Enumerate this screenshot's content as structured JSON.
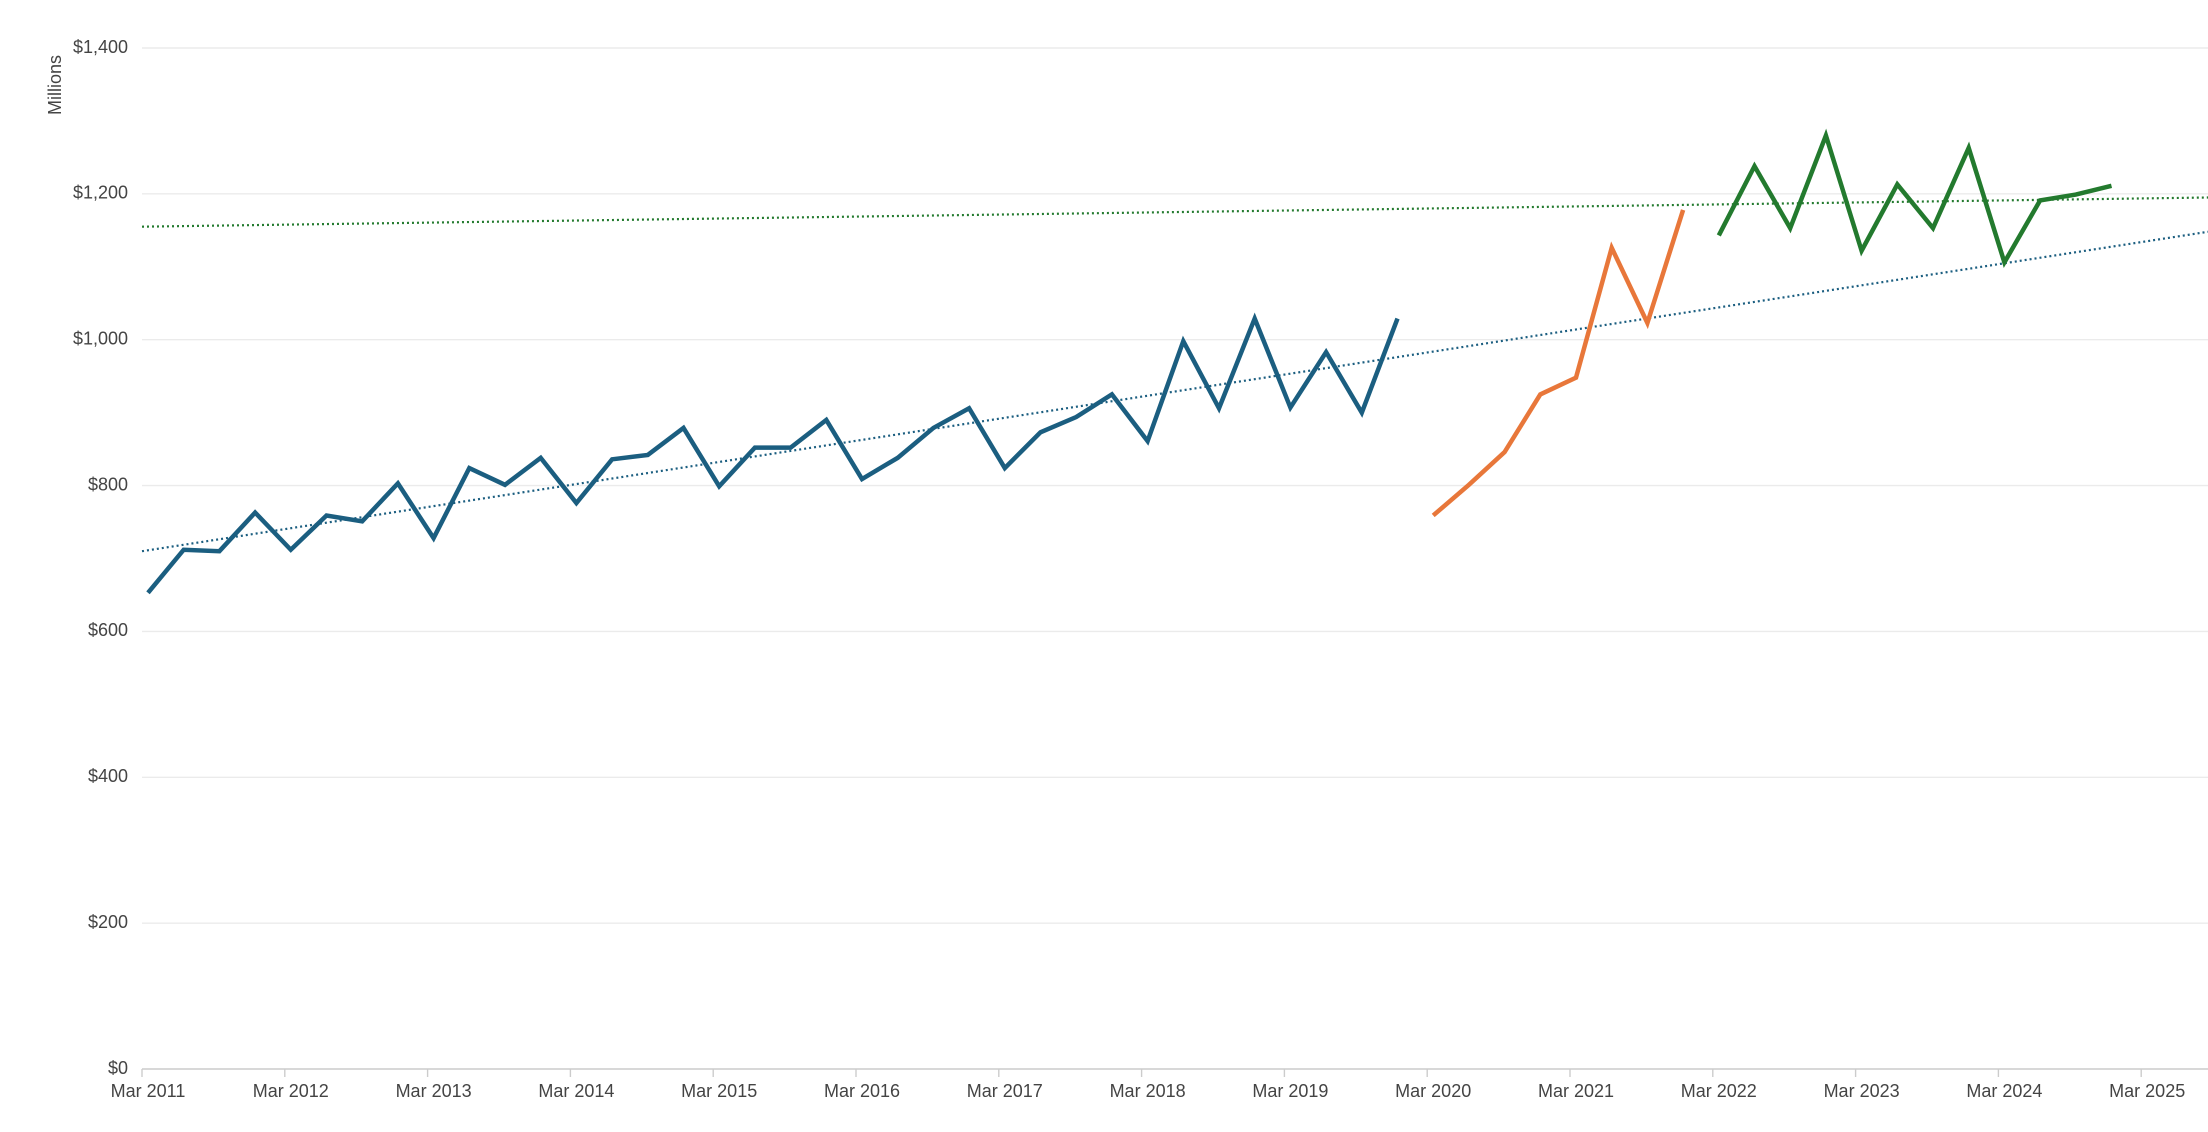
{
  "chart_data": {
    "type": "line",
    "y_axis_label": "Millions",
    "categories": [
      "Mar 2011",
      null,
      null,
      null,
      "Mar 2012",
      null,
      null,
      null,
      "Mar 2013",
      null,
      null,
      null,
      "Mar 2014",
      null,
      null,
      null,
      "Mar 2015",
      null,
      null,
      null,
      "Mar 2016",
      null,
      null,
      null,
      "Mar 2017",
      null,
      null,
      null,
      "Mar 2018",
      null,
      null,
      null,
      "Mar 2019",
      null,
      null,
      null,
      "Mar 2020",
      null,
      null,
      null,
      "Mar 2021",
      null,
      null,
      null,
      "Mar 2022",
      null,
      null,
      null,
      "Mar 2023",
      null,
      null,
      null,
      "Mar 2024",
      null,
      null,
      null,
      "Mar 2025"
    ],
    "series": [
      {
        "color": "#1b5e80",
        "values": [
          653,
          712,
          710,
          763,
          712,
          759,
          751,
          803,
          728,
          824,
          801,
          838,
          776,
          836,
          842,
          879,
          799,
          852,
          852,
          890,
          809,
          838,
          879,
          906,
          824,
          873,
          894,
          925,
          861,
          998,
          906,
          1029,
          907,
          983,
          900,
          1029,
          null,
          null,
          null,
          null,
          null,
          null,
          null,
          null,
          null,
          null,
          null,
          null,
          null,
          null,
          null,
          null,
          null,
          null,
          null,
          null,
          null
        ]
      },
      {
        "color": "#e8773a",
        "values": [
          null,
          null,
          null,
          null,
          null,
          null,
          null,
          null,
          null,
          null,
          null,
          null,
          null,
          null,
          null,
          null,
          null,
          null,
          null,
          null,
          null,
          null,
          null,
          null,
          null,
          null,
          null,
          null,
          null,
          null,
          null,
          null,
          null,
          null,
          null,
          null,
          759,
          801,
          846,
          925,
          948,
          1126,
          1023,
          1178,
          null,
          null,
          null,
          null,
          null,
          null,
          null,
          null,
          null,
          null,
          null,
          null,
          null
        ]
      },
      {
        "color": "#237a2e",
        "values": [
          null,
          null,
          null,
          null,
          null,
          null,
          null,
          null,
          null,
          null,
          null,
          null,
          null,
          null,
          null,
          null,
          null,
          null,
          null,
          null,
          null,
          null,
          null,
          null,
          null,
          null,
          null,
          null,
          null,
          null,
          null,
          null,
          null,
          null,
          null,
          null,
          null,
          null,
          null,
          null,
          null,
          null,
          null,
          null,
          1143,
          1238,
          1153,
          1280,
          1122,
          1213,
          1153,
          1263,
          1106,
          1191,
          1199,
          1211,
          null
        ]
      }
    ],
    "trendlines": [
      {
        "color": "#1b5e80",
        "style": "dotted",
        "from": 710,
        "to": 1148
      },
      {
        "color": "#237a2e",
        "style": "dotted",
        "from": 1155,
        "to": 1195
      }
    ],
    "ylim": [
      0,
      1400
    ],
    "yticks": [
      {
        "value": 0,
        "label": "$0"
      },
      {
        "value": 200,
        "label": "$200"
      },
      {
        "value": 400,
        "label": "$400"
      },
      {
        "value": 600,
        "label": "$600"
      },
      {
        "value": 800,
        "label": "$800"
      },
      {
        "value": 1000,
        "label": "$1,000"
      },
      {
        "value": 1200,
        "label": "$1,200"
      },
      {
        "value": 1400,
        "label": "$1,400"
      }
    ],
    "grid": true
  }
}
